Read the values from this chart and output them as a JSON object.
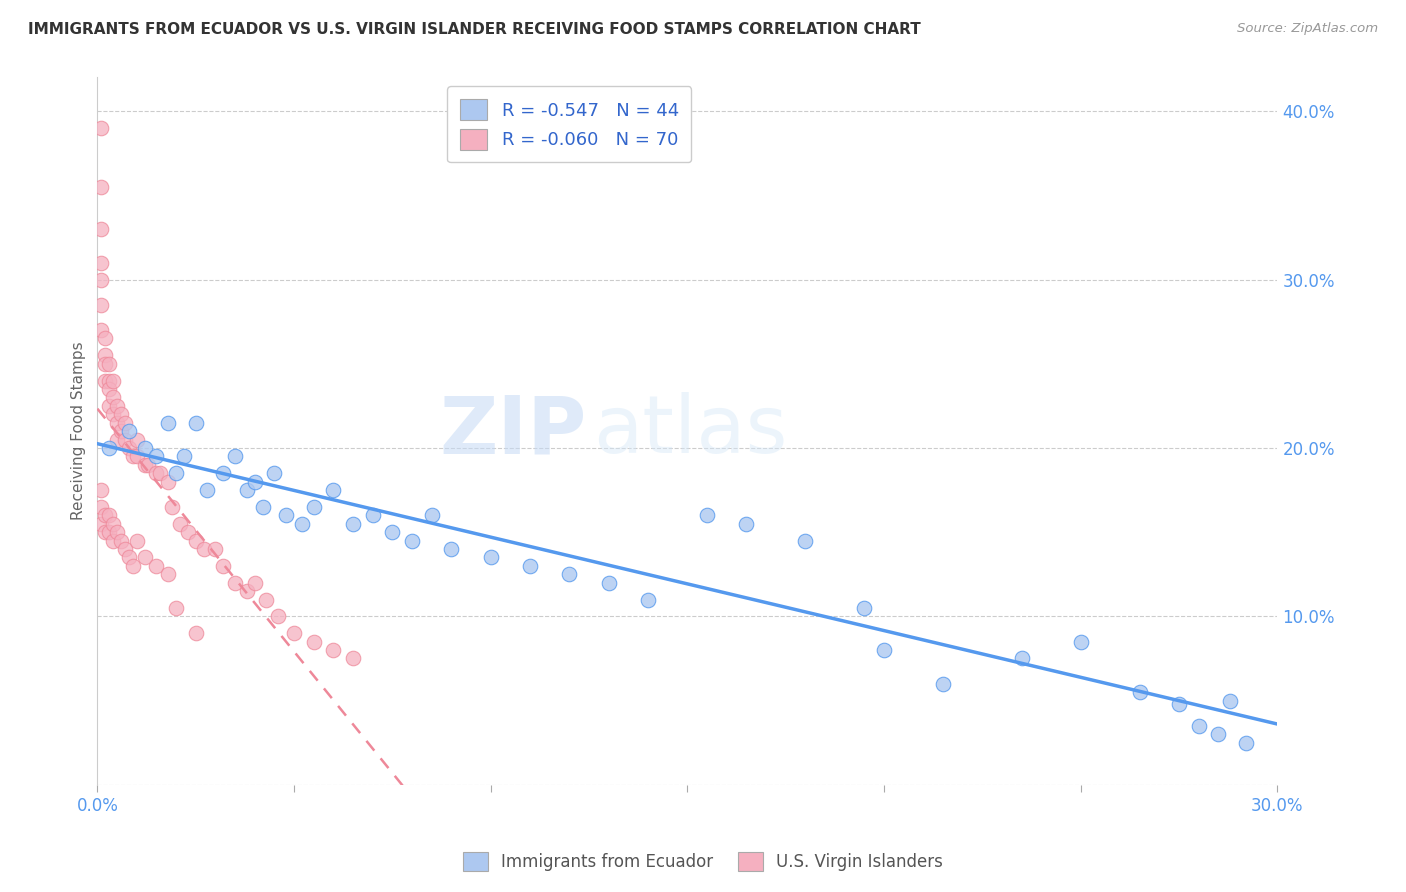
{
  "title": "IMMIGRANTS FROM ECUADOR VS U.S. VIRGIN ISLANDER RECEIVING FOOD STAMPS CORRELATION CHART",
  "source": "Source: ZipAtlas.com",
  "ylabel": "Receiving Food Stamps",
  "legend_label1": "Immigrants from Ecuador",
  "legend_label2": "U.S. Virgin Islanders",
  "r1": -0.547,
  "n1": 44,
  "r2": -0.06,
  "n2": 70,
  "color1": "#adc8f0",
  "color2": "#f5b0c0",
  "line_color1": "#5599ee",
  "line_color2": "#ee8899",
  "xlim": [
    0.0,
    0.3
  ],
  "ylim": [
    0.0,
    0.42
  ],
  "x_ticks": [
    0.0,
    0.05,
    0.1,
    0.15,
    0.2,
    0.25,
    0.3
  ],
  "x_tick_labels": [
    "0.0%",
    "",
    "",
    "",
    "",
    "",
    "30.0%"
  ],
  "y_ticks_right": [
    0.0,
    0.1,
    0.2,
    0.3,
    0.4
  ],
  "y_tick_labels_right": [
    "",
    "10.0%",
    "20.0%",
    "30.0%",
    "40.0%"
  ],
  "watermark_zip": "ZIP",
  "watermark_atlas": "atlas",
  "blue_x": [
    0.003,
    0.008,
    0.012,
    0.015,
    0.018,
    0.02,
    0.022,
    0.025,
    0.028,
    0.032,
    0.035,
    0.038,
    0.04,
    0.042,
    0.045,
    0.048,
    0.052,
    0.055,
    0.06,
    0.065,
    0.07,
    0.075,
    0.08,
    0.085,
    0.09,
    0.1,
    0.11,
    0.12,
    0.13,
    0.14,
    0.155,
    0.165,
    0.18,
    0.195,
    0.2,
    0.215,
    0.235,
    0.25,
    0.265,
    0.275,
    0.28,
    0.285,
    0.288,
    0.292
  ],
  "blue_y": [
    0.2,
    0.21,
    0.2,
    0.195,
    0.215,
    0.185,
    0.195,
    0.215,
    0.175,
    0.185,
    0.195,
    0.175,
    0.18,
    0.165,
    0.185,
    0.16,
    0.155,
    0.165,
    0.175,
    0.155,
    0.16,
    0.15,
    0.145,
    0.16,
    0.14,
    0.135,
    0.13,
    0.125,
    0.12,
    0.11,
    0.16,
    0.155,
    0.145,
    0.105,
    0.08,
    0.06,
    0.075,
    0.085,
    0.055,
    0.048,
    0.035,
    0.03,
    0.05,
    0.025
  ],
  "pink_x": [
    0.001,
    0.001,
    0.001,
    0.001,
    0.001,
    0.001,
    0.001,
    0.002,
    0.002,
    0.002,
    0.002,
    0.003,
    0.003,
    0.003,
    0.003,
    0.004,
    0.004,
    0.004,
    0.005,
    0.005,
    0.005,
    0.006,
    0.006,
    0.007,
    0.007,
    0.008,
    0.009,
    0.01,
    0.01,
    0.012,
    0.013,
    0.015,
    0.016,
    0.018,
    0.019,
    0.021,
    0.023,
    0.025,
    0.027,
    0.03,
    0.032,
    0.035,
    0.038,
    0.04,
    0.043,
    0.046,
    0.05,
    0.055,
    0.06,
    0.065,
    0.001,
    0.001,
    0.001,
    0.002,
    0.002,
    0.003,
    0.003,
    0.004,
    0.004,
    0.005,
    0.006,
    0.007,
    0.008,
    0.009,
    0.01,
    0.012,
    0.015,
    0.018,
    0.02,
    0.025
  ],
  "pink_y": [
    0.39,
    0.355,
    0.33,
    0.31,
    0.3,
    0.285,
    0.27,
    0.265,
    0.255,
    0.25,
    0.24,
    0.25,
    0.24,
    0.235,
    0.225,
    0.24,
    0.23,
    0.22,
    0.225,
    0.215,
    0.205,
    0.22,
    0.21,
    0.215,
    0.205,
    0.2,
    0.195,
    0.205,
    0.195,
    0.19,
    0.19,
    0.185,
    0.185,
    0.18,
    0.165,
    0.155,
    0.15,
    0.145,
    0.14,
    0.14,
    0.13,
    0.12,
    0.115,
    0.12,
    0.11,
    0.1,
    0.09,
    0.085,
    0.08,
    0.075,
    0.175,
    0.165,
    0.155,
    0.16,
    0.15,
    0.16,
    0.15,
    0.155,
    0.145,
    0.15,
    0.145,
    0.14,
    0.135,
    0.13,
    0.145,
    0.135,
    0.13,
    0.125,
    0.105,
    0.09
  ]
}
